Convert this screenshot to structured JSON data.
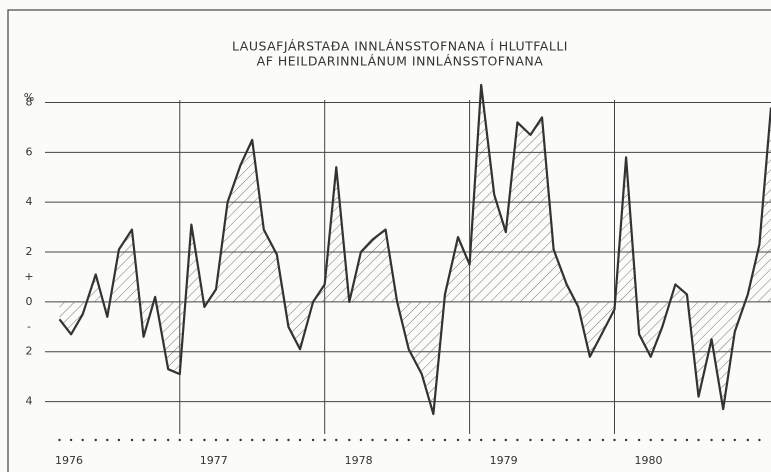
{
  "chart_data": {
    "type": "line",
    "title": "LAUSAFJÁRSTAÐA INNLÁNSSTOFNANA Í HLUTFALLI",
    "subtitle": "AF HEILDARINNLÁNUM INNLÁNSSTOFNANA",
    "y_label": "%",
    "x": [
      1976.17,
      1976.25,
      1976.33,
      1976.42,
      1976.5,
      1976.58,
      1976.67,
      1976.75,
      1976.83,
      1976.92,
      1977.0,
      1977.08,
      1977.17,
      1977.25,
      1977.33,
      1977.42,
      1977.5,
      1977.58,
      1977.67,
      1977.75,
      1977.83,
      1977.92,
      1978.0,
      1978.08,
      1978.17,
      1978.25,
      1978.33,
      1978.42,
      1978.5,
      1978.58,
      1978.67,
      1978.75,
      1978.83,
      1978.92,
      1979.0,
      1979.08,
      1979.17,
      1979.25,
      1979.33,
      1979.42,
      1979.5,
      1979.58,
      1979.67,
      1979.75,
      1979.83,
      1979.92,
      1980.0,
      1980.08,
      1980.17,
      1980.25,
      1980.33,
      1980.42,
      1980.5,
      1980.58,
      1980.67,
      1980.75,
      1980.83,
      1980.92,
      1981.0,
      1981.08
    ],
    "series": [
      {
        "name": "Lausafjárstaða",
        "color": "#333333",
        "values": [
          -0.7,
          -1.3,
          -0.5,
          1.1,
          -0.6,
          2.1,
          2.9,
          -1.4,
          0.2,
          -2.7,
          -2.9,
          3.1,
          -0.2,
          0.5,
          4.0,
          5.5,
          6.5,
          2.9,
          1.9,
          -1.0,
          -1.9,
          0.0,
          0.7,
          5.4,
          0.0,
          2.0,
          2.5,
          2.9,
          0.0,
          -1.9,
          -2.9,
          -4.5,
          0.3,
          2.6,
          1.5,
          8.7,
          4.3,
          2.8,
          7.2,
          6.7,
          7.4,
          2.1,
          0.7,
          -0.2,
          -2.2,
          -1.2,
          -0.3,
          5.8,
          -1.3,
          -2.2,
          -1.0,
          0.7,
          0.3,
          -3.8,
          -1.5,
          -4.3,
          -1.2,
          0.3,
          2.3,
          7.8
        ]
      }
    ],
    "xlim": [
      1976.07,
      1981.08
    ],
    "xticks": [
      {
        "value": 1976,
        "label": "1976"
      },
      {
        "value": 1977,
        "label": "1977"
      },
      {
        "value": 1978,
        "label": "1978"
      },
      {
        "value": 1979,
        "label": "1979"
      },
      {
        "value": 1980,
        "label": "1980"
      }
    ],
    "ylim": [
      -5.3,
      8.5
    ],
    "yticks": [
      8,
      6,
      4,
      2,
      0,
      {
        "value": -2,
        "label": "2"
      },
      {
        "value": -4,
        "label": "4"
      }
    ],
    "sign_labels": [
      {
        "value": 1,
        "label": "+"
      },
      {
        "value": -1,
        "label": "-"
      }
    ],
    "grid": true,
    "hatch": true
  }
}
